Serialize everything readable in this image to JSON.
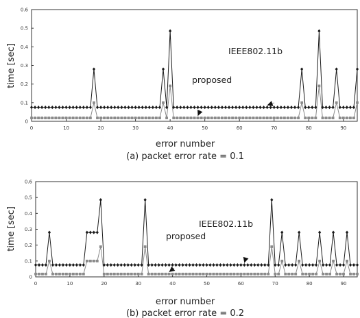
{
  "chart_data": [
    {
      "type": "line",
      "caption": "(a) packet error rate = 0.1",
      "xlabel": "error number",
      "ylabel": "time [sec]",
      "xlim": [
        0,
        94
      ],
      "ylim": [
        0,
        0.6
      ],
      "xticks": [
        0,
        10,
        20,
        30,
        40,
        50,
        60,
        70,
        80,
        90
      ],
      "yticks": [
        0,
        0.1,
        0.2,
        0.3,
        0.4,
        0.5,
        0.6
      ],
      "xtick_labels": [
        "0",
        "10",
        "20",
        "30",
        "40",
        "50",
        "60",
        "70",
        "80",
        "90"
      ],
      "ytick_labels": [
        "0",
        "0.1",
        "0.2",
        "0.3",
        "0.4",
        "0.5",
        "0.6"
      ],
      "annotations": [
        {
          "text": "IEEE802.11b",
          "series": "IEEE802.11b",
          "target_x": 68
        },
        {
          "text": "proposed",
          "series": "proposed",
          "target_x": 48
        }
      ],
      "series": [
        {
          "name": "IEEE802.11b",
          "color": "#1a1a1a",
          "marker": "diamond",
          "baseline": 0.075,
          "peaks": [
            [
              18,
              0.28
            ],
            [
              38,
              0.28
            ],
            [
              40,
              0.485
            ],
            [
              78,
              0.28
            ],
            [
              83,
              0.485
            ],
            [
              88,
              0.28
            ],
            [
              94,
              0.28
            ]
          ]
        },
        {
          "name": "proposed",
          "color": "#8a8a8a",
          "marker": "square",
          "baseline": 0.018,
          "peaks": [
            [
              18,
              0.1
            ],
            [
              38,
              0.1
            ],
            [
              40,
              0.19
            ],
            [
              78,
              0.1
            ],
            [
              83,
              0.19
            ],
            [
              88,
              0.1
            ],
            [
              94,
              0.1
            ]
          ]
        }
      ]
    },
    {
      "type": "line",
      "caption": "(b) packet error rate = 0.2",
      "xlabel": "error number",
      "ylabel": "time [sec]",
      "xlim": [
        0,
        94
      ],
      "ylim": [
        0,
        0.6
      ],
      "xticks": [
        0,
        10,
        20,
        30,
        40,
        50,
        60,
        70,
        80,
        90
      ],
      "yticks": [
        0,
        0.1,
        0.2,
        0.3,
        0.4,
        0.5,
        0.6
      ],
      "xtick_labels": [
        "0",
        "10",
        "20",
        "30",
        "40",
        "50",
        "60",
        "70",
        "80",
        "90"
      ],
      "ytick_labels": [
        "0",
        "0.1",
        "0.2",
        "0.3",
        "0.4",
        "0.5",
        "0.6"
      ],
      "annotations": [
        {
          "text": "IEEE802.11b",
          "series": "IEEE802.11b",
          "target_x": 61
        },
        {
          "text": "proposed",
          "series": "proposed",
          "target_x": 39
        }
      ],
      "series": [
        {
          "name": "IEEE802.11b",
          "color": "#1a1a1a",
          "marker": "diamond",
          "baseline": 0.075,
          "peaks": [
            [
              4,
              0.28
            ],
            [
              15,
              0.28
            ],
            [
              16,
              0.28
            ],
            [
              17,
              0.28
            ],
            [
              18,
              0.28
            ],
            [
              19,
              0.485
            ],
            [
              32,
              0.485
            ],
            [
              69,
              0.485
            ],
            [
              72,
              0.28
            ],
            [
              77,
              0.28
            ],
            [
              83,
              0.28
            ],
            [
              87,
              0.28
            ],
            [
              91,
              0.28
            ]
          ]
        },
        {
          "name": "proposed",
          "color": "#8a8a8a",
          "marker": "square",
          "baseline": 0.018,
          "peaks": [
            [
              4,
              0.1
            ],
            [
              15,
              0.1
            ],
            [
              16,
              0.1
            ],
            [
              17,
              0.1
            ],
            [
              18,
              0.1
            ],
            [
              19,
              0.19
            ],
            [
              32,
              0.19
            ],
            [
              69,
              0.19
            ],
            [
              72,
              0.1
            ],
            [
              77,
              0.1
            ],
            [
              83,
              0.1
            ],
            [
              87,
              0.1
            ],
            [
              91,
              0.1
            ]
          ]
        }
      ]
    }
  ]
}
